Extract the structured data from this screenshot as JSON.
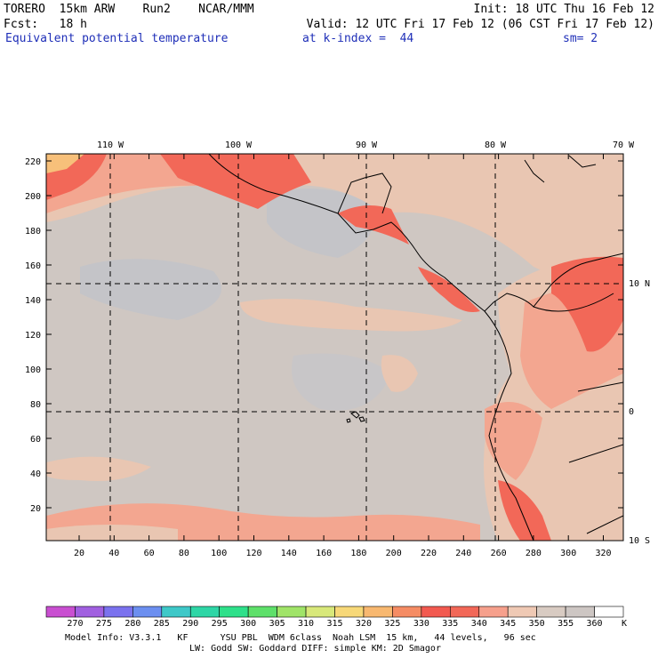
{
  "header": {
    "model": "TORERO  15km ARW    Run2    NCAR/MMM",
    "init": "Init: 18 UTC Thu 16 Feb 12",
    "fcst": "Fcst:   18 h",
    "valid": "Valid: 12 UTC Fri 17 Feb 12 (06 CST Fri 17 Feb 12)",
    "field": "Equivalent potential temperature",
    "level": "at k-index =  44",
    "smooth": "sm= 2"
  },
  "map": {
    "lon_labels": [
      "110 W",
      "100 W",
      "90 W",
      "80 W",
      "70 W"
    ],
    "lat_labels": [
      "10 N",
      "0",
      "10 S"
    ],
    "y_ticks": [
      "220",
      "200",
      "180",
      "160",
      "140",
      "120",
      "100",
      "80",
      "60",
      "40",
      "20"
    ],
    "x_ticks": [
      "20",
      "40",
      "60",
      "80",
      "100",
      "120",
      "140",
      "160",
      "180",
      "200",
      "220",
      "240",
      "260",
      "280",
      "300",
      "320"
    ],
    "background_color": "#cfc7c2"
  },
  "colorbar": {
    "labels": [
      "270",
      "275",
      "280",
      "285",
      "290",
      "295",
      "300",
      "305",
      "310",
      "315",
      "320",
      "325",
      "330",
      "335",
      "340",
      "345",
      "350",
      "355",
      "360"
    ],
    "unit": "K",
    "colors": [
      "#c94fd1",
      "#a160e0",
      "#7b72ee",
      "#6c8ff0",
      "#3ec8c8",
      "#2ed6a6",
      "#2ee08a",
      "#5ee06a",
      "#a0e468",
      "#d8e87a",
      "#f7d878",
      "#f8b870",
      "#f58c64",
      "#f25a50",
      "#f26858",
      "#f6a08c",
      "#efc9b4",
      "#d8cbc2",
      "#cdc6c3",
      "#ffffff"
    ]
  },
  "footer": {
    "line1": "Model Info: V3.3.1   KF      YSU PBL  WDM 6class  Noah LSM  15 km,   44 levels,   96 sec",
    "line2": "LW: Godd SW: Goddard DIFF: simple KM: 2D Smagor"
  }
}
